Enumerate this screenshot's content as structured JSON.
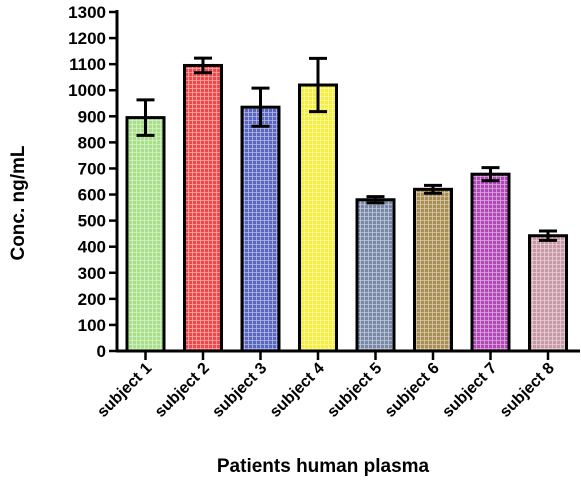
{
  "chart_data": {
    "type": "bar",
    "title": "",
    "xlabel": "Patients human plasma",
    "ylabel": "Conc. ng/mL",
    "ylim": [
      0,
      1300
    ],
    "yticks": [
      0,
      100,
      200,
      300,
      400,
      500,
      600,
      700,
      800,
      900,
      1000,
      1100,
      1200,
      1300
    ],
    "grid": false,
    "legend": "none",
    "categories": [
      "subject 1",
      "subject 2",
      "subject 3",
      "subject 4",
      "subject 5",
      "subject 6",
      "subject 7",
      "subject 8"
    ],
    "values": [
      895,
      1095,
      935,
      1020,
      580,
      620,
      678,
      442
    ],
    "errors": [
      68,
      28,
      73,
      102,
      12,
      15,
      25,
      18
    ],
    "colors": [
      "#a8e08a",
      "#f04848",
      "#5866c0",
      "#f4ee40",
      "#7888a8",
      "#a88c50",
      "#b048b8",
      "#c89aa8"
    ]
  }
}
